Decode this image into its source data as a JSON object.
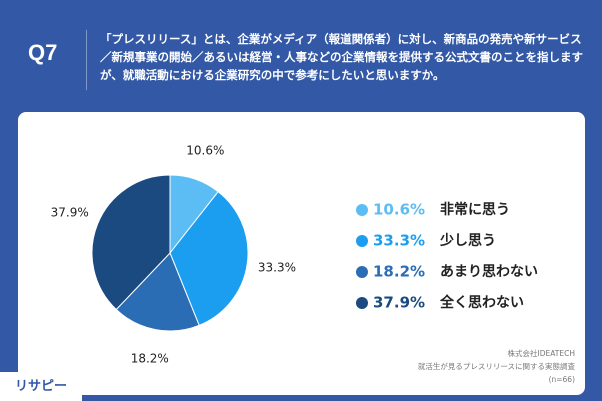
{
  "question_number": "Q7",
  "chart_data": {
    "type": "pie",
    "title": "「プレスリリース」とは、企業がメディア（報道関係者）に対し、新商品の発売や新サービス／新規事業の開始／あるいは経営・人事などの企業情報を提供する公式文書のことを指しますが、就職活動における企業研究の中で参考にしたいと思いますか。",
    "categories": [
      "非常に思う",
      "少し思う",
      "あまり思わない",
      "全く思わない"
    ],
    "values": [
      10.6,
      33.3,
      18.2,
      37.9
    ],
    "value_labels": [
      "10.6%",
      "33.3%",
      "18.2%",
      "37.9%"
    ],
    "colors": [
      "#5cbdf5",
      "#1b9ef0",
      "#2a6db4",
      "#1b4a80"
    ]
  },
  "source": [
    "株式会社IDEATECH",
    "就活生が見るプレスリリースに関する実態調査",
    "(n=66)"
  ],
  "logo": "リサピー"
}
